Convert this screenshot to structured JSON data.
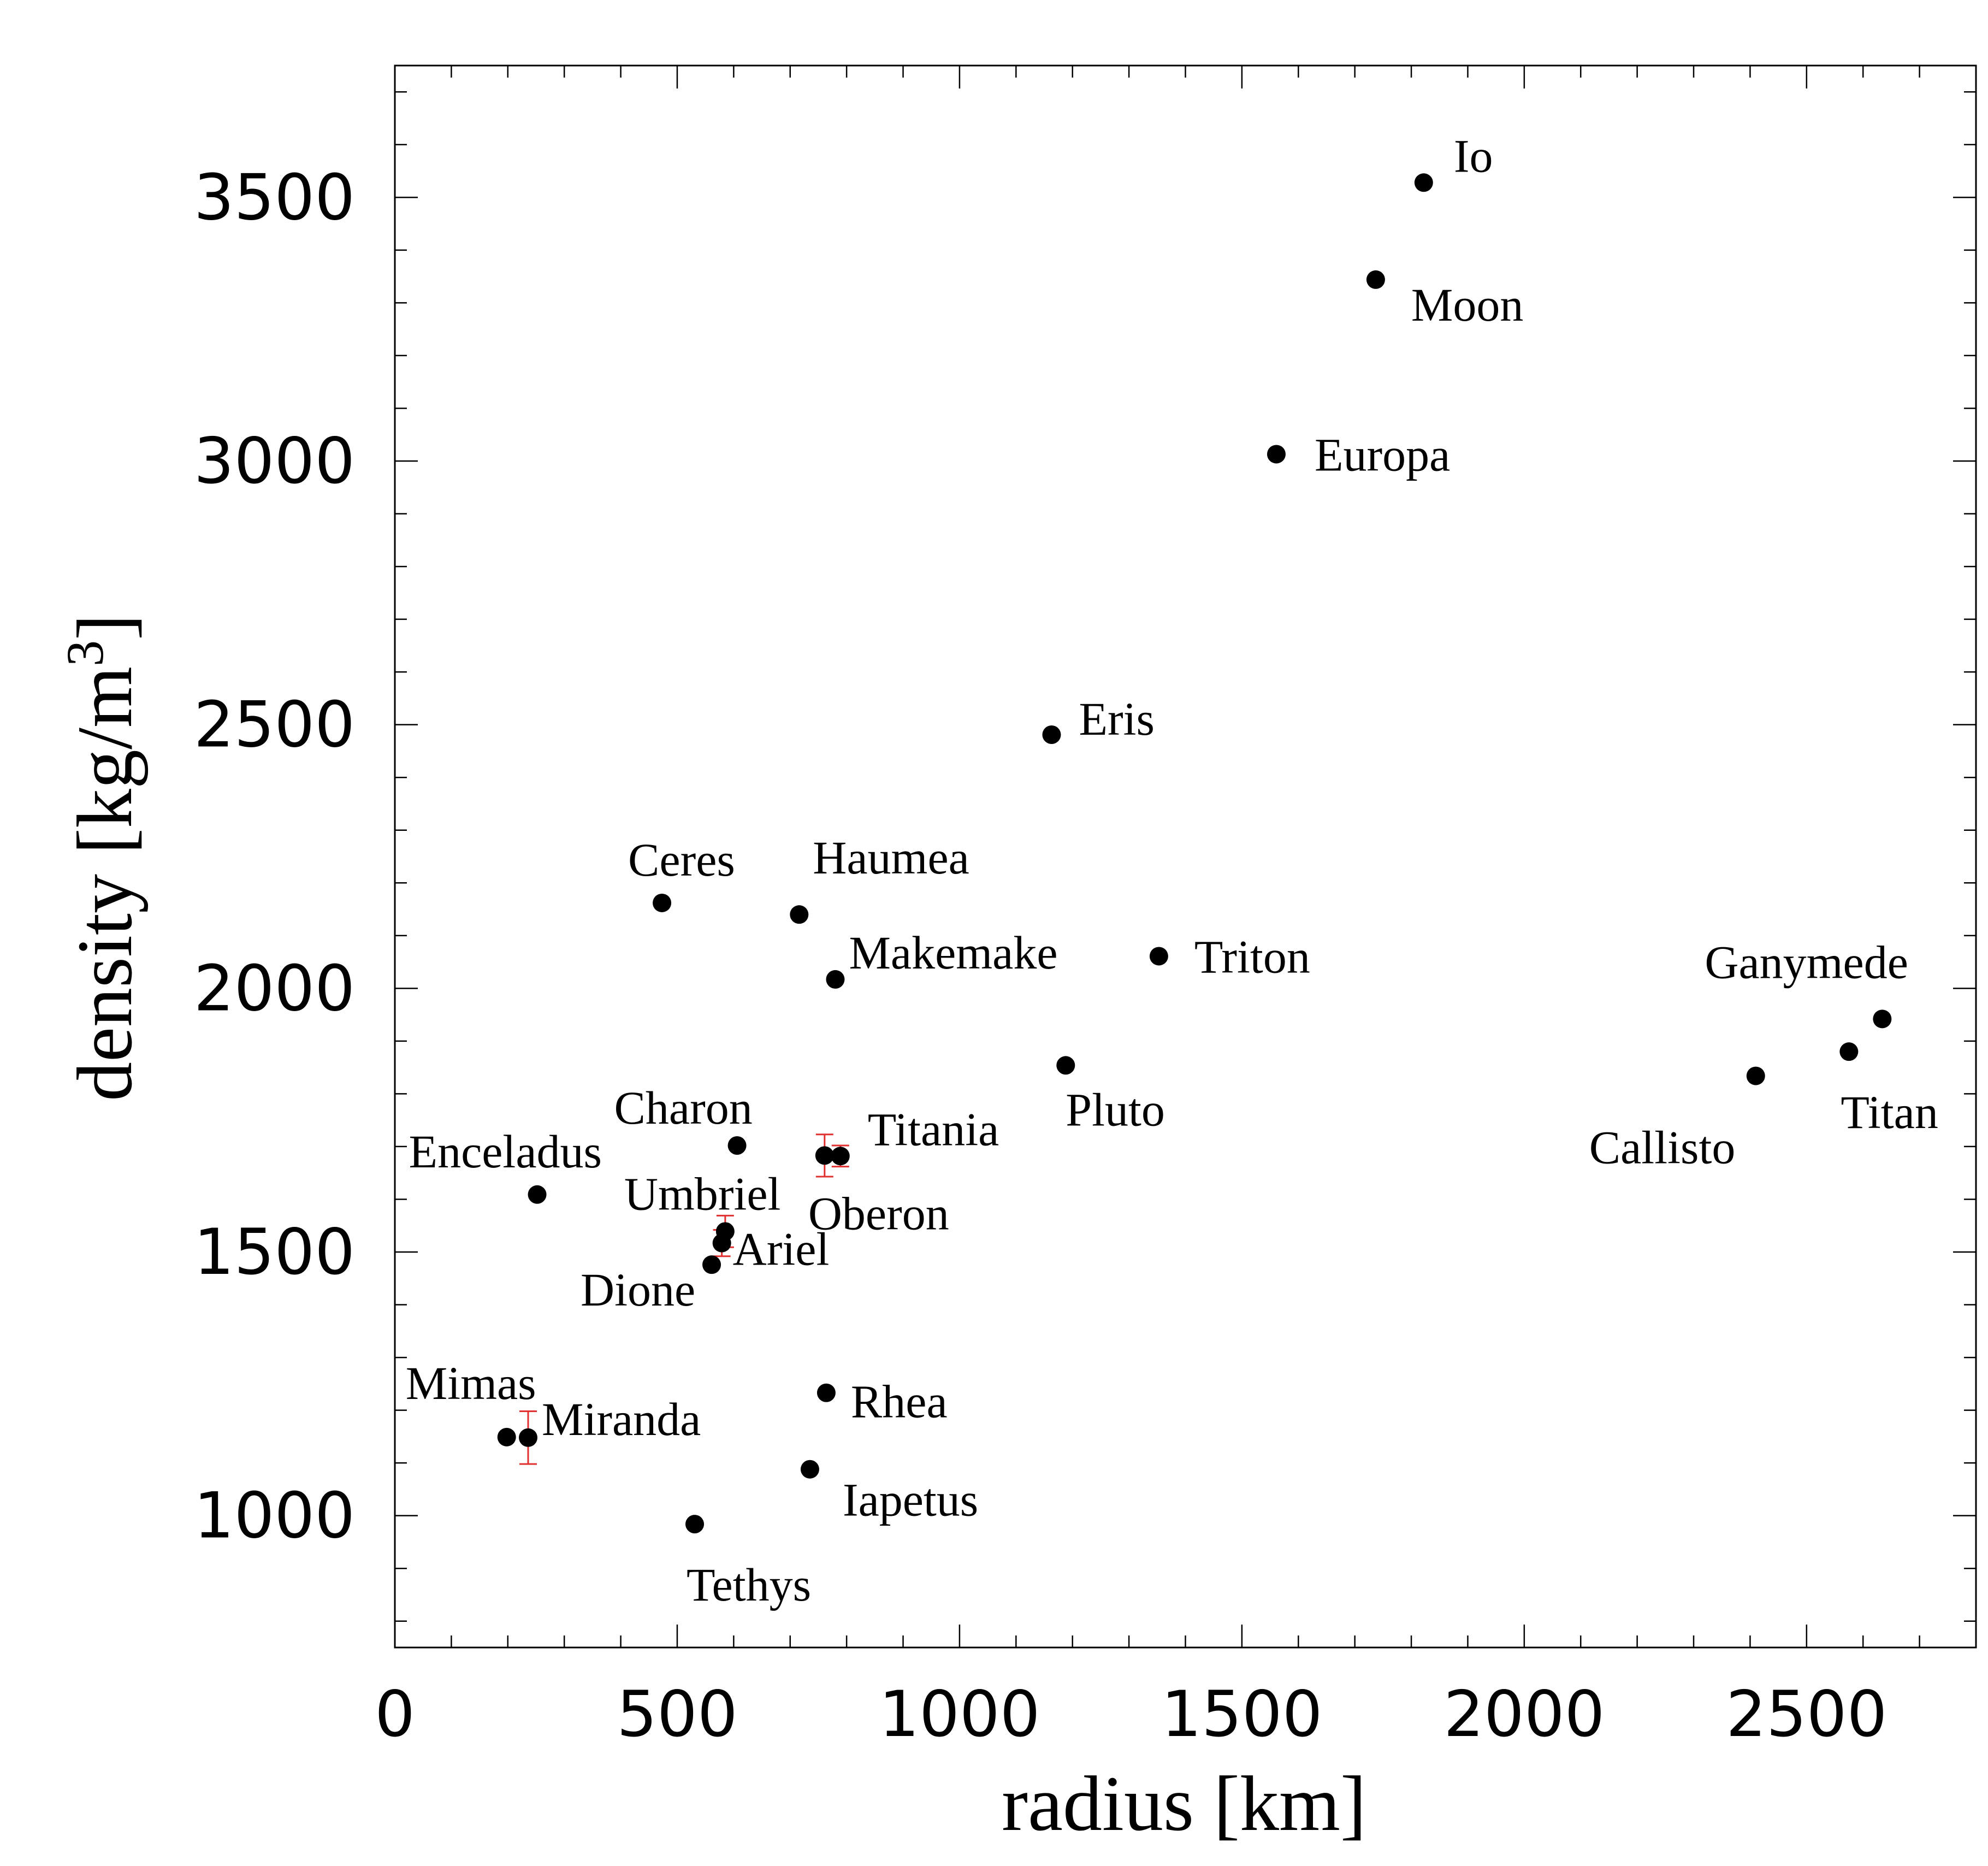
{
  "chart_data": {
    "type": "scatter",
    "xlabel": "radius [km]",
    "ylabel": "density [kg/m",
    "ylabel_sup": "3",
    "ylabel_close": "]",
    "xlim": [
      0,
      2800
    ],
    "ylim": [
      750,
      3750
    ],
    "x_ticks": [
      0,
      500,
      1000,
      1500,
      2000,
      2500
    ],
    "y_ticks": [
      1000,
      1500,
      2000,
      2500,
      3000,
      3500
    ],
    "x_minor_step": 100,
    "y_minor_step": 100,
    "grid": false,
    "point_color": "#000000",
    "errorbar_color": "#e03030",
    "points": [
      {
        "name": "Io",
        "x": 1822,
        "y": 3528
      },
      {
        "name": "Moon",
        "x": 1737,
        "y": 3344
      },
      {
        "name": "Europa",
        "x": 1561,
        "y": 3013
      },
      {
        "name": "Eris",
        "x": 1163,
        "y": 2481
      },
      {
        "name": "Ceres",
        "x": 473,
        "y": 2162
      },
      {
        "name": "Haumea",
        "x": 716,
        "y": 2140
      },
      {
        "name": "Makemake",
        "x": 780,
        "y": 2017
      },
      {
        "name": "Triton",
        "x": 1353,
        "y": 2061
      },
      {
        "name": "Ganymede",
        "x": 2634,
        "y": 1942
      },
      {
        "name": "Titan",
        "x": 2575,
        "y": 1880
      },
      {
        "name": "Callisto",
        "x": 2410,
        "y": 1834
      },
      {
        "name": "Pluto",
        "x": 1188,
        "y": 1854
      },
      {
        "name": "Charon",
        "x": 606,
        "y": 1702
      },
      {
        "name": "Titania",
        "x": 789,
        "y": 1682,
        "err": 20
      },
      {
        "name": "Oberon",
        "x": 761,
        "y": 1683,
        "err": 40
      },
      {
        "name": "Enceladus",
        "x": 252,
        "y": 1609
      },
      {
        "name": "Umbriel",
        "x": 585,
        "y": 1539,
        "err": 30
      },
      {
        "name": "Ariel",
        "x": 579,
        "y": 1517,
        "err": 25
      },
      {
        "name": "Dione",
        "x": 561,
        "y": 1476
      },
      {
        "name": "Rhea",
        "x": 764,
        "y": 1233
      },
      {
        "name": "Mimas",
        "x": 198,
        "y": 1149
      },
      {
        "name": "Miranda",
        "x": 236,
        "y": 1148,
        "err": 50
      },
      {
        "name": "Iapetus",
        "x": 735,
        "y": 1088
      },
      {
        "name": "Tethys",
        "x": 531,
        "y": 984
      }
    ]
  }
}
